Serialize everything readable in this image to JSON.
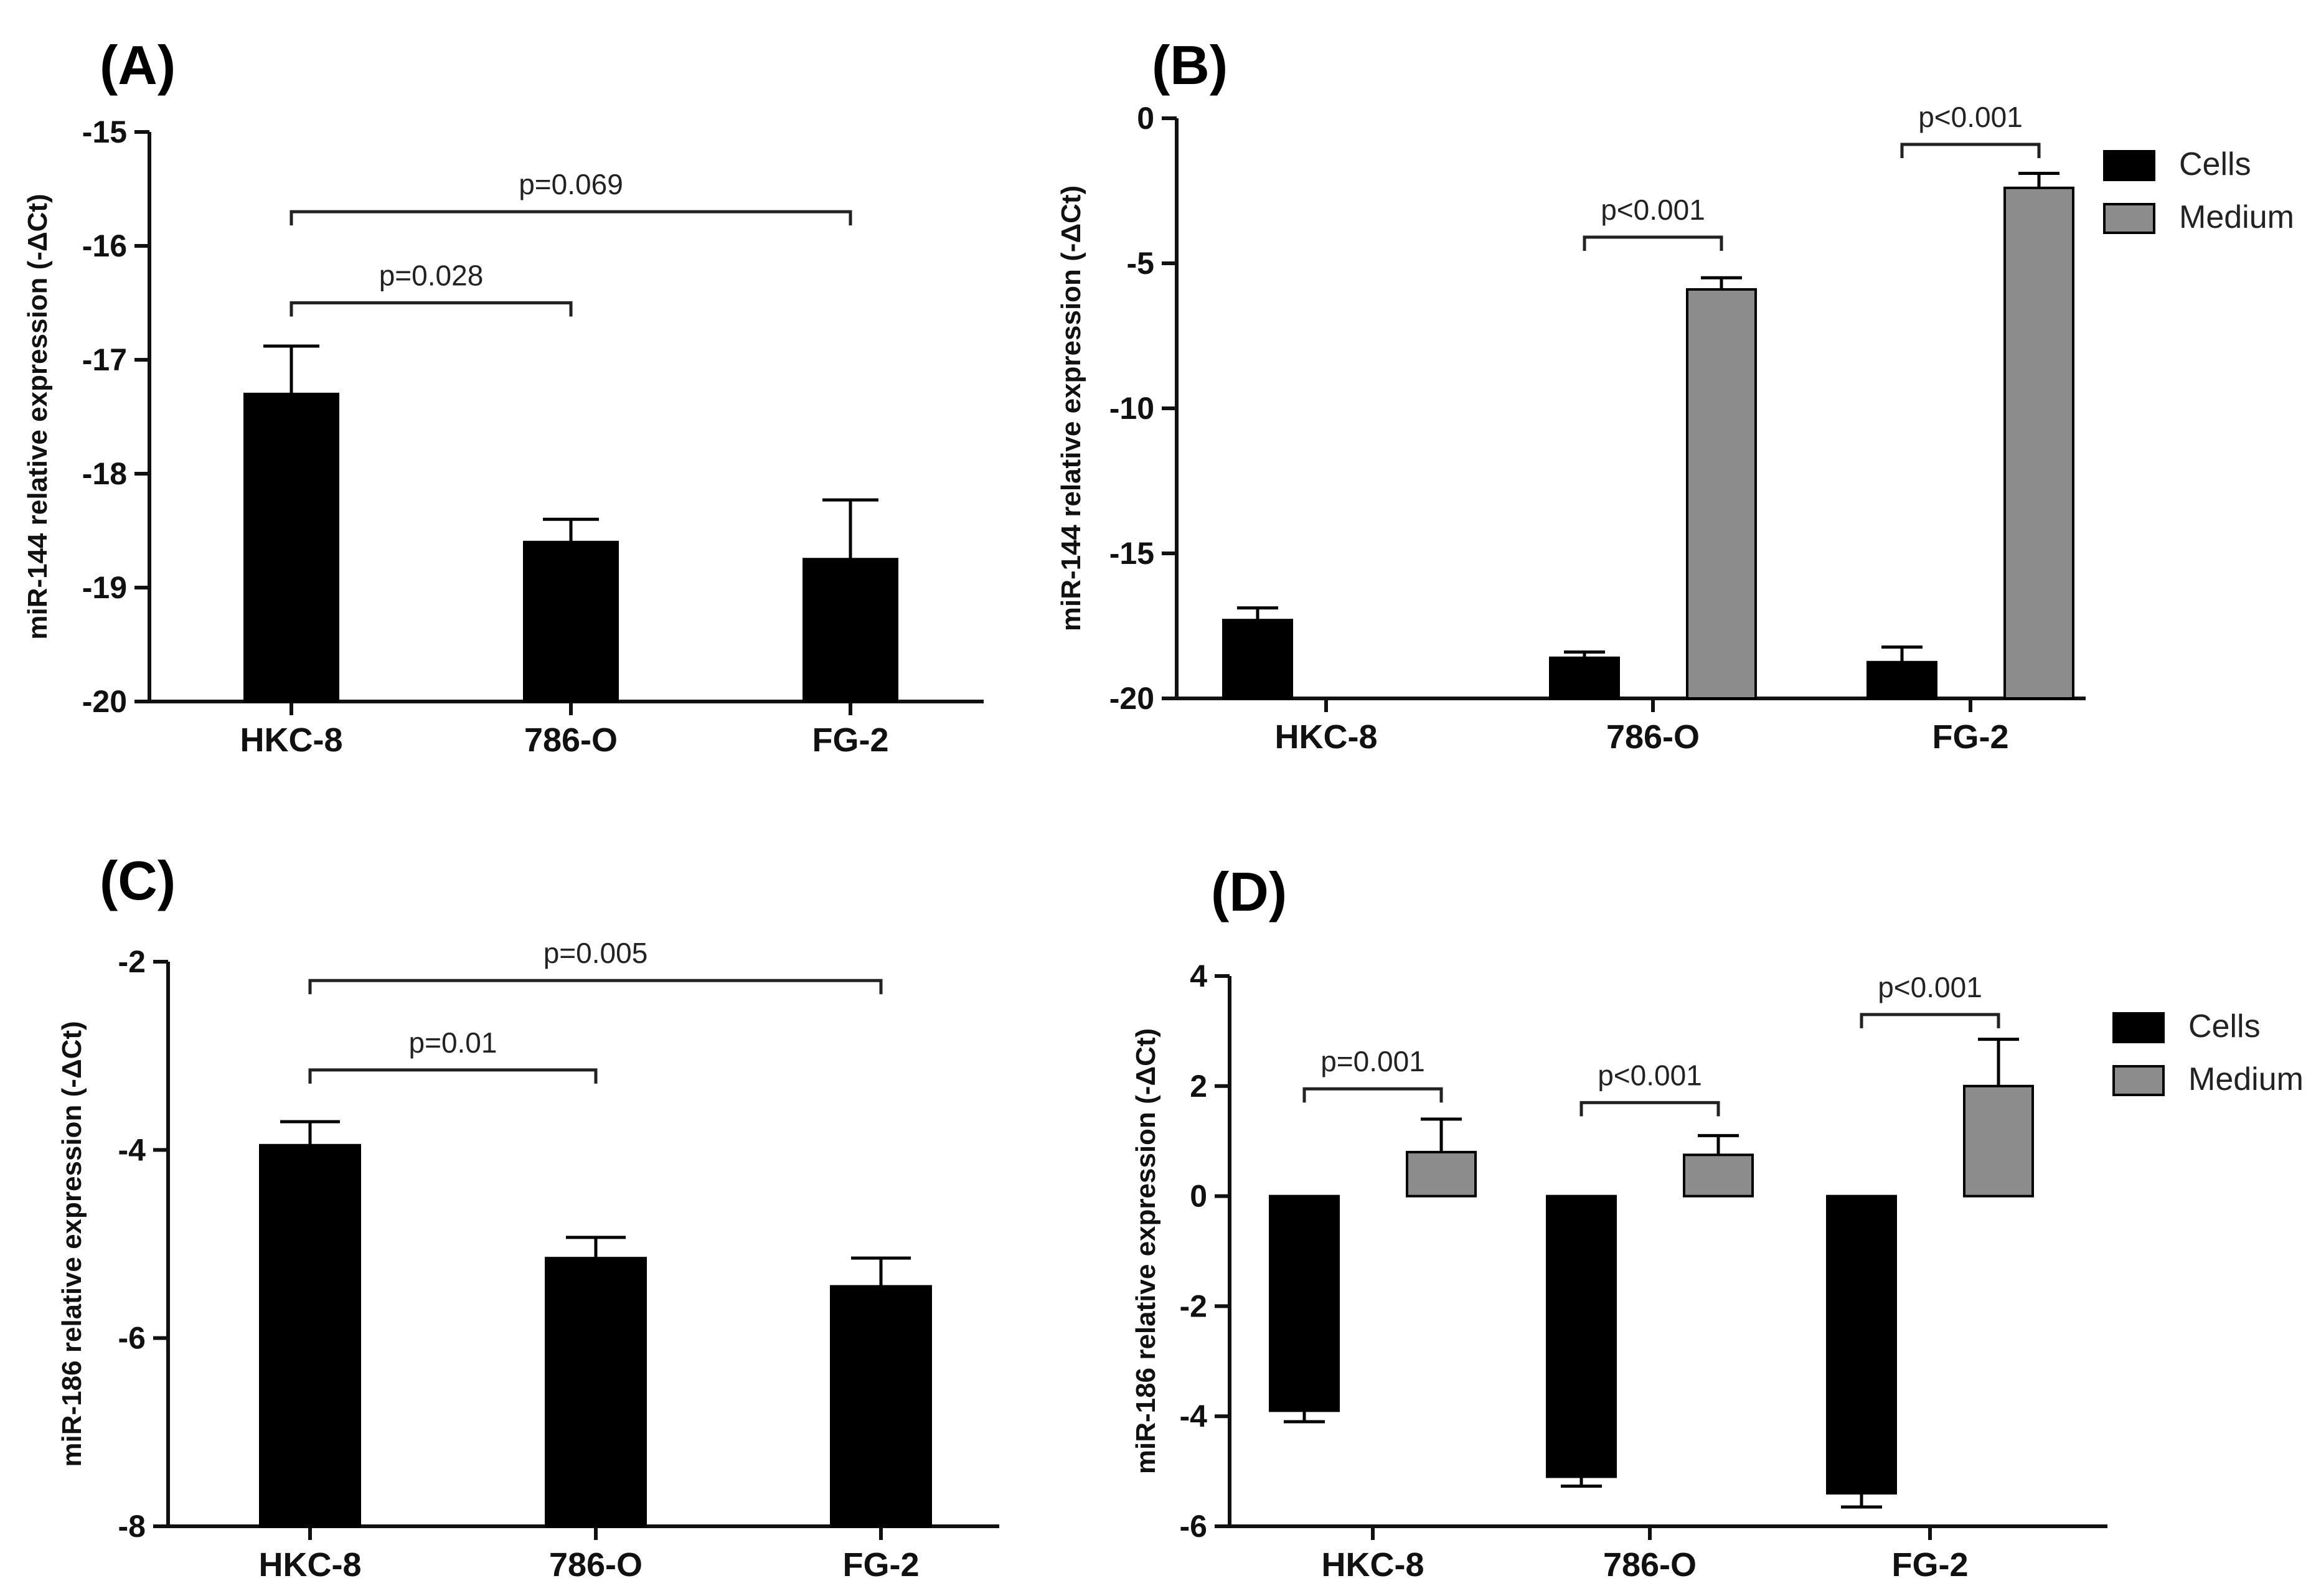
{
  "colors": {
    "cells": "#000000",
    "medium": "#8c8c8c",
    "axis": "#111111"
  },
  "chart_data": [
    {
      "id": "A",
      "panel_label": "(A)",
      "type": "bar",
      "ylabel": "miR-144 relative expression (-ΔCt)",
      "ylim": [
        -20,
        -15
      ],
      "yticks": [
        -15,
        -16,
        -17,
        -18,
        -19,
        -20
      ],
      "categories": [
        "HKC-8",
        "786-O",
        "FG-2"
      ],
      "series": [
        {
          "name": "Cells",
          "values": [
            -17.3,
            -18.6,
            -18.75
          ],
          "errors": [
            0.42,
            0.2,
            0.52
          ]
        }
      ],
      "annotations": [
        {
          "text": "p=0.028",
          "from": 0,
          "to": 1,
          "y": -16.5
        },
        {
          "text": "p=0.069",
          "from": 0,
          "to": 2,
          "y": -15.7
        }
      ]
    },
    {
      "id": "B",
      "panel_label": "(B)",
      "type": "bar",
      "ylabel": "miR-144 relative expression (-ΔCt)",
      "ylim": [
        -20,
        0
      ],
      "yticks": [
        0,
        -5,
        -10,
        -15,
        -20
      ],
      "categories": [
        "HKC-8",
        "786-O",
        "FG-2"
      ],
      "legend": [
        "Cells",
        "Medium"
      ],
      "series": [
        {
          "name": "Cells",
          "values": [
            -17.3,
            -18.6,
            -18.75
          ],
          "errors": [
            0.42,
            0.2,
            0.52
          ]
        },
        {
          "name": "Medium",
          "values": [
            null,
            -5.9,
            -2.4
          ],
          "errors": [
            null,
            0.4,
            0.5
          ]
        }
      ],
      "annotations": [
        {
          "text": "p<0.001",
          "from": 1,
          "to": 1,
          "y": -4.1
        },
        {
          "text": "p<0.001",
          "from": 2,
          "to": 2,
          "y": -0.9
        }
      ]
    },
    {
      "id": "C",
      "panel_label": "(C)",
      "type": "bar",
      "ylabel": "miR-186 relative expression (-ΔCt)",
      "ylim": [
        -8,
        -2
      ],
      "yticks": [
        -2,
        -4,
        -6,
        -8
      ],
      "categories": [
        "HKC-8",
        "786-O",
        "FG-2"
      ],
      "series": [
        {
          "name": "Cells",
          "values": [
            -3.95,
            -5.15,
            -5.45
          ],
          "errors": [
            0.25,
            0.22,
            0.3
          ]
        }
      ],
      "annotations": [
        {
          "text": "p=0.01",
          "from": 0,
          "to": 1,
          "y": -3.15
        },
        {
          "text": "p=0.005",
          "from": 0,
          "to": 2,
          "y": -2.2
        }
      ]
    },
    {
      "id": "D",
      "panel_label": "(D)",
      "type": "bar",
      "ylabel": "miR-186 relative expression (-ΔCt)",
      "ylim": [
        -6,
        4
      ],
      "yticks": [
        4,
        2,
        0,
        -2,
        -4,
        -6
      ],
      "categories": [
        "HKC-8",
        "786-O",
        "FG-2"
      ],
      "legend": [
        "Cells",
        "Medium"
      ],
      "series": [
        {
          "name": "Cells",
          "values": [
            -3.9,
            -5.1,
            -5.4
          ],
          "errors": [
            0.2,
            0.17,
            0.25
          ]
        },
        {
          "name": "Medium",
          "values": [
            0.8,
            0.75,
            2.0
          ],
          "errors": [
            0.6,
            0.35,
            0.85
          ]
        }
      ],
      "annotations": [
        {
          "text": "p=0.001",
          "from": 0,
          "to": 0,
          "y": 1.95
        },
        {
          "text": "p<0.001",
          "from": 1,
          "to": 1,
          "y": 1.7
        },
        {
          "text": "p<0.001",
          "from": 2,
          "to": 2,
          "y": 3.3
        }
      ]
    }
  ]
}
